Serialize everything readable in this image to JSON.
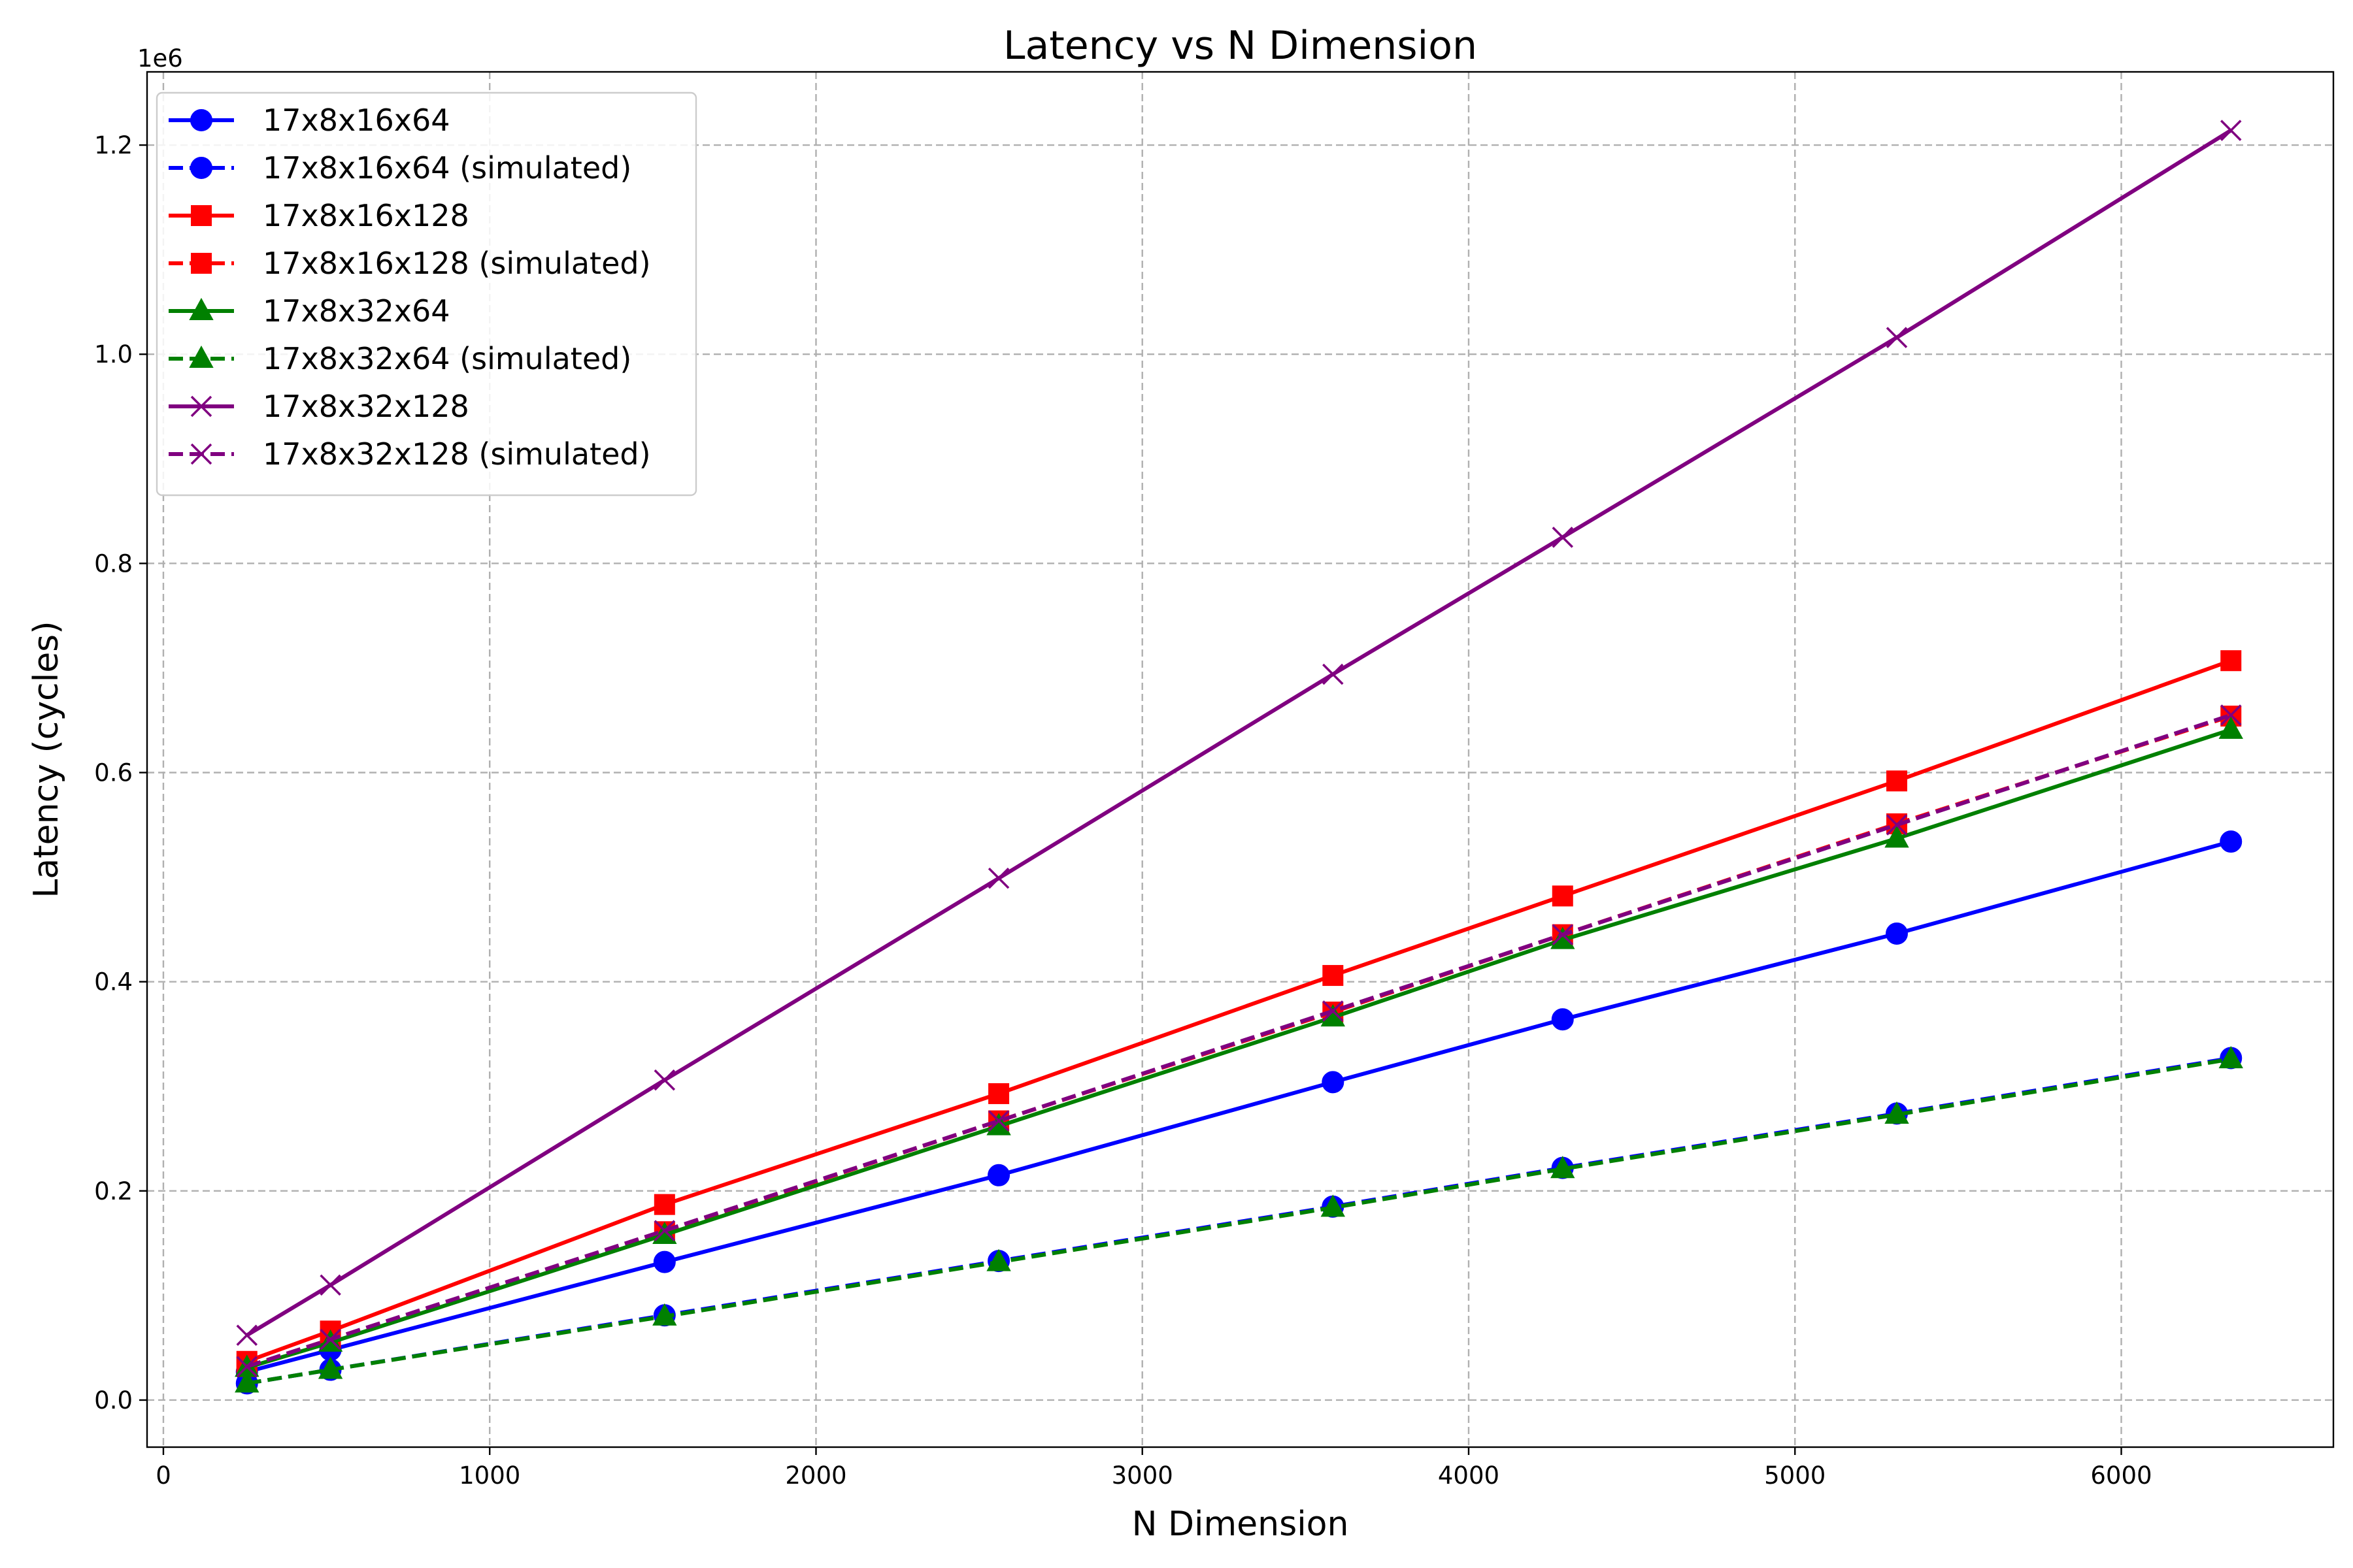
{
  "chart_data": {
    "type": "line",
    "title": "Latency vs N Dimension",
    "xlabel": "N Dimension",
    "ylabel": "Latency (cycles)",
    "y_scale_label": "1e6",
    "xlim": [
      -50,
      6650
    ],
    "ylim": [
      -0.045,
      1.27
    ],
    "x_ticks": [
      0,
      1000,
      2000,
      3000,
      4000,
      5000,
      6000
    ],
    "x_tick_labels": [
      "0",
      "1000",
      "2000",
      "3000",
      "4000",
      "5000",
      "6000"
    ],
    "y_ticks": [
      0.0,
      0.2,
      0.4,
      0.6,
      0.8,
      1.0,
      1.2
    ],
    "y_tick_labels": [
      "0.0",
      "0.2",
      "0.4",
      "0.6",
      "0.8",
      "1.0",
      "1.2"
    ],
    "grid": true,
    "legend_position": "top-left",
    "x": [
      256,
      512,
      1536,
      2560,
      3584,
      4288,
      5312,
      6336
    ],
    "series": [
      {
        "name": "17x8x16x64",
        "color": "#0000ff",
        "marker": "circle",
        "linestyle": "solid",
        "values": [
          0.027,
          0.048,
          0.132,
          0.215,
          0.304,
          0.364,
          0.446,
          0.534
        ]
      },
      {
        "name": "17x8x16x64 (simulated)",
        "color": "#0000ff",
        "marker": "circle",
        "linestyle": "dashed",
        "values": [
          0.016,
          0.029,
          0.081,
          0.133,
          0.185,
          0.222,
          0.274,
          0.327
        ]
      },
      {
        "name": "17x8x16x128",
        "color": "#ff0000",
        "marker": "square",
        "linestyle": "solid",
        "values": [
          0.037,
          0.066,
          0.187,
          0.293,
          0.406,
          0.482,
          0.592,
          0.707
        ]
      },
      {
        "name": "17x8x16x128 (simulated)",
        "color": "#ff0000",
        "marker": "square",
        "linestyle": "dashed",
        "values": [
          0.032,
          0.058,
          0.161,
          0.267,
          0.371,
          0.445,
          0.551,
          0.654
        ]
      },
      {
        "name": "17x8x32x64",
        "color": "#008000",
        "marker": "triangle",
        "linestyle": "solid",
        "values": [
          0.031,
          0.055,
          0.158,
          0.262,
          0.366,
          0.44,
          0.537,
          0.641
        ]
      },
      {
        "name": "17x8x32x64 (simulated)",
        "color": "#008000",
        "marker": "triangle",
        "linestyle": "dashed",
        "values": [
          0.016,
          0.029,
          0.08,
          0.132,
          0.184,
          0.221,
          0.273,
          0.326
        ]
      },
      {
        "name": "17x8x32x128",
        "color": "#800080",
        "marker": "x",
        "linestyle": "solid",
        "values": [
          0.062,
          0.11,
          0.306,
          0.499,
          0.694,
          0.825,
          1.016,
          1.214
        ]
      },
      {
        "name": "17x8x32x128 (simulated)",
        "color": "#800080",
        "marker": "x",
        "linestyle": "dashed",
        "values": [
          0.032,
          0.058,
          0.162,
          0.267,
          0.372,
          0.445,
          0.55,
          0.655
        ]
      }
    ]
  }
}
